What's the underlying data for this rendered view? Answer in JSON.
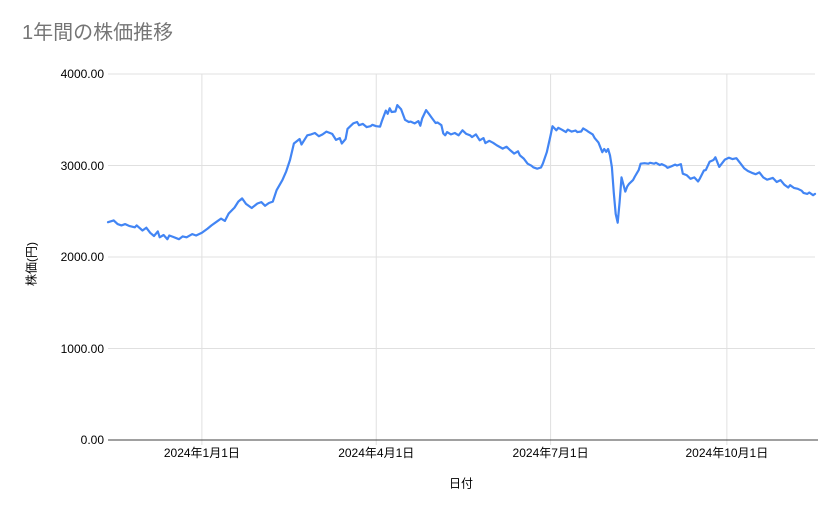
{
  "header": {
    "title": "1年間の株価推移"
  },
  "colors": {
    "line": "#4285f4",
    "grid": "#e0e0e0",
    "baseline": "#424242",
    "title_text": "#757575",
    "label_text": "#000000",
    "background": "#ffffff"
  },
  "chart_data": {
    "type": "line",
    "title": "1年間の株価推移",
    "xlabel": "日付",
    "ylabel": "株価(円)",
    "ylim": [
      0,
      4000
    ],
    "grid": true,
    "legend": "none",
    "y_ticks": [
      {
        "label": "4000.00",
        "value": 4000
      },
      {
        "label": "3000.00",
        "value": 3000
      },
      {
        "label": "2000.00",
        "value": 2000
      },
      {
        "label": "1000.00",
        "value": 1000
      },
      {
        "label": "0.00",
        "value": 0
      }
    ],
    "x_domain_days": 369,
    "x_ticks": [
      {
        "label": "2024年1月1日",
        "day": 49
      },
      {
        "label": "2024年4月1日",
        "day": 140
      },
      {
        "label": "2024年7月1日",
        "day": 231
      },
      {
        "label": "2024年10月1日",
        "day": 323
      }
    ],
    "series": [
      {
        "color": "#4285f4",
        "points": [
          [
            0,
            2380
          ],
          [
            3,
            2400
          ],
          [
            5,
            2360
          ],
          [
            7,
            2345
          ],
          [
            9,
            2360
          ],
          [
            11,
            2340
          ],
          [
            14,
            2325
          ],
          [
            15,
            2345
          ],
          [
            18,
            2290
          ],
          [
            20,
            2320
          ],
          [
            22,
            2265
          ],
          [
            24,
            2230
          ],
          [
            26,
            2280
          ],
          [
            27,
            2215
          ],
          [
            29,
            2240
          ],
          [
            31,
            2195
          ],
          [
            32,
            2235
          ],
          [
            34,
            2220
          ],
          [
            37,
            2195
          ],
          [
            39,
            2225
          ],
          [
            41,
            2215
          ],
          [
            44,
            2250
          ],
          [
            46,
            2235
          ],
          [
            49,
            2265
          ],
          [
            52,
            2310
          ],
          [
            54,
            2345
          ],
          [
            57,
            2390
          ],
          [
            59,
            2420
          ],
          [
            61,
            2395
          ],
          [
            63,
            2475
          ],
          [
            66,
            2540
          ],
          [
            68,
            2605
          ],
          [
            70,
            2640
          ],
          [
            72,
            2580
          ],
          [
            75,
            2535
          ],
          [
            78,
            2585
          ],
          [
            80,
            2600
          ],
          [
            82,
            2560
          ],
          [
            84,
            2590
          ],
          [
            86,
            2605
          ],
          [
            88,
            2730
          ],
          [
            91,
            2840
          ],
          [
            93,
            2935
          ],
          [
            95,
            3060
          ],
          [
            97,
            3240
          ],
          [
            100,
            3290
          ],
          [
            101,
            3230
          ],
          [
            104,
            3330
          ],
          [
            106,
            3340
          ],
          [
            108,
            3355
          ],
          [
            110,
            3320
          ],
          [
            112,
            3340
          ],
          [
            114,
            3370
          ],
          [
            117,
            3345
          ],
          [
            119,
            3280
          ],
          [
            121,
            3300
          ],
          [
            122,
            3240
          ],
          [
            124,
            3290
          ],
          [
            125,
            3400
          ],
          [
            128,
            3460
          ],
          [
            130,
            3475
          ],
          [
            131,
            3440
          ],
          [
            133,
            3455
          ],
          [
            135,
            3420
          ],
          [
            137,
            3430
          ],
          [
            138,
            3445
          ],
          [
            140,
            3430
          ],
          [
            142,
            3425
          ],
          [
            143,
            3490
          ],
          [
            145,
            3600
          ],
          [
            146,
            3565
          ],
          [
            147,
            3625
          ],
          [
            148,
            3585
          ],
          [
            150,
            3590
          ],
          [
            151,
            3660
          ],
          [
            153,
            3615
          ],
          [
            155,
            3500
          ],
          [
            157,
            3475
          ],
          [
            158,
            3480
          ],
          [
            160,
            3460
          ],
          [
            162,
            3485
          ],
          [
            163,
            3435
          ],
          [
            164,
            3515
          ],
          [
            166,
            3605
          ],
          [
            168,
            3550
          ],
          [
            169,
            3520
          ],
          [
            171,
            3465
          ],
          [
            172,
            3470
          ],
          [
            174,
            3440
          ],
          [
            175,
            3350
          ],
          [
            176,
            3330
          ],
          [
            177,
            3365
          ],
          [
            179,
            3340
          ],
          [
            181,
            3355
          ],
          [
            183,
            3330
          ],
          [
            185,
            3385
          ],
          [
            187,
            3345
          ],
          [
            189,
            3330
          ],
          [
            190,
            3310
          ],
          [
            192,
            3340
          ],
          [
            194,
            3275
          ],
          [
            196,
            3300
          ],
          [
            197,
            3245
          ],
          [
            199,
            3270
          ],
          [
            201,
            3248
          ],
          [
            203,
            3220
          ],
          [
            206,
            3185
          ],
          [
            208,
            3205
          ],
          [
            210,
            3165
          ],
          [
            212,
            3130
          ],
          [
            214,
            3155
          ],
          [
            215,
            3110
          ],
          [
            217,
            3075
          ],
          [
            219,
            3020
          ],
          [
            221,
            2998
          ],
          [
            222,
            2980
          ],
          [
            224,
            2965
          ],
          [
            226,
            2978
          ],
          [
            227,
            3022
          ],
          [
            229,
            3145
          ],
          [
            231,
            3330
          ],
          [
            232,
            3430
          ],
          [
            234,
            3385
          ],
          [
            235,
            3412
          ],
          [
            237,
            3390
          ],
          [
            239,
            3365
          ],
          [
            240,
            3392
          ],
          [
            242,
            3370
          ],
          [
            244,
            3382
          ],
          [
            245,
            3365
          ],
          [
            247,
            3372
          ],
          [
            248,
            3405
          ],
          [
            250,
            3380
          ],
          [
            251,
            3365
          ],
          [
            253,
            3340
          ],
          [
            254,
            3300
          ],
          [
            256,
            3250
          ],
          [
            258,
            3145
          ],
          [
            259,
            3180
          ],
          [
            260,
            3150
          ],
          [
            261,
            3180
          ],
          [
            262,
            3110
          ],
          [
            263,
            2980
          ],
          [
            264,
            2700
          ],
          [
            265,
            2470
          ],
          [
            266,
            2375
          ],
          [
            267,
            2600
          ],
          [
            268,
            2870
          ],
          [
            270,
            2715
          ],
          [
            271,
            2770
          ],
          [
            272,
            2800
          ],
          [
            274,
            2840
          ],
          [
            275,
            2880
          ],
          [
            277,
            2950
          ],
          [
            278,
            3020
          ],
          [
            280,
            3025
          ],
          [
            282,
            3020
          ],
          [
            283,
            3030
          ],
          [
            285,
            3020
          ],
          [
            286,
            3030
          ],
          [
            288,
            3005
          ],
          [
            289,
            3015
          ],
          [
            291,
            2995
          ],
          [
            292,
            2975
          ],
          [
            294,
            2990
          ],
          [
            296,
            3010
          ],
          [
            297,
            3000
          ],
          [
            299,
            3015
          ],
          [
            300,
            2910
          ],
          [
            302,
            2895
          ],
          [
            304,
            2855
          ],
          [
            306,
            2870
          ],
          [
            308,
            2825
          ],
          [
            309,
            2860
          ],
          [
            311,
            2945
          ],
          [
            312,
            2950
          ],
          [
            314,
            3040
          ],
          [
            316,
            3060
          ],
          [
            317,
            3090
          ],
          [
            319,
            2985
          ],
          [
            322,
            3065
          ],
          [
            324,
            3085
          ],
          [
            326,
            3070
          ],
          [
            328,
            3080
          ],
          [
            330,
            3025
          ],
          [
            332,
            2970
          ],
          [
            334,
            2940
          ],
          [
            336,
            2920
          ],
          [
            338,
            2905
          ],
          [
            340,
            2925
          ],
          [
            342,
            2870
          ],
          [
            344,
            2845
          ],
          [
            347,
            2865
          ],
          [
            349,
            2820
          ],
          [
            351,
            2840
          ],
          [
            353,
            2790
          ],
          [
            355,
            2760
          ],
          [
            356,
            2785
          ],
          [
            358,
            2755
          ],
          [
            360,
            2745
          ],
          [
            362,
            2725
          ],
          [
            363,
            2700
          ],
          [
            365,
            2690
          ],
          [
            366,
            2705
          ],
          [
            368,
            2675
          ],
          [
            369,
            2690
          ]
        ]
      }
    ]
  }
}
